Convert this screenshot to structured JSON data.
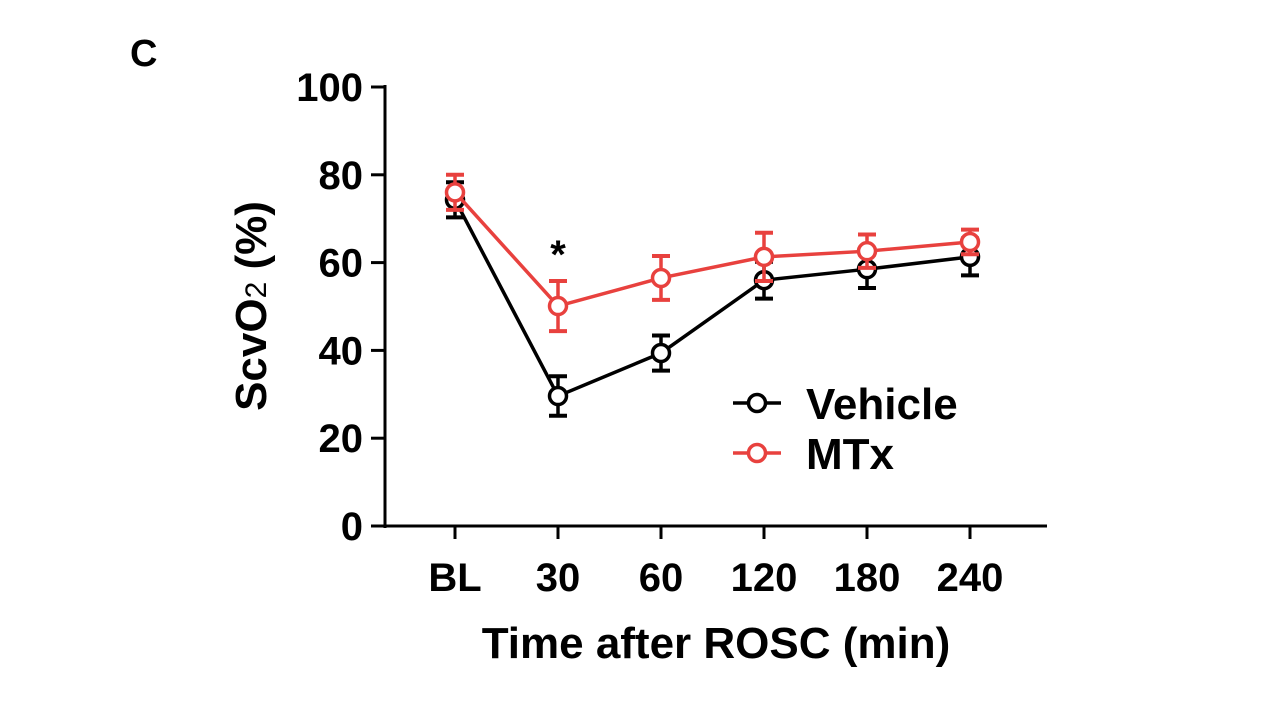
{
  "panel_label": "C",
  "chart_data": {
    "type": "line",
    "title": "",
    "xlabel": "Time after ROSC (min)",
    "ylabel": "ScvO2 (%)",
    "ylabel_main": "ScvO",
    "ylabel_sub": "2",
    "ylabel_tail": " (%)",
    "ylim": [
      0,
      100
    ],
    "yticks": [
      0,
      20,
      40,
      60,
      80,
      100
    ],
    "categories": [
      "BL",
      "30",
      "60",
      "120",
      "180",
      "240"
    ],
    "legend_position": "center-right",
    "grid": false,
    "series": [
      {
        "name": "Vehicle",
        "color": "#000000",
        "values": [
          74.3,
          29.6,
          39.4,
          56.0,
          58.5,
          61.3
        ],
        "errors": [
          4.0,
          4.5,
          4.0,
          4.2,
          4.3,
          4.2
        ]
      },
      {
        "name": "MTx",
        "color": "#e8413e",
        "values": [
          76.0,
          50.1,
          56.5,
          61.3,
          62.6,
          64.7
        ],
        "errors": [
          4.0,
          5.7,
          5.0,
          5.5,
          3.8,
          2.8
        ]
      }
    ],
    "annotations": [
      {
        "category": "30",
        "text": "*"
      }
    ]
  }
}
